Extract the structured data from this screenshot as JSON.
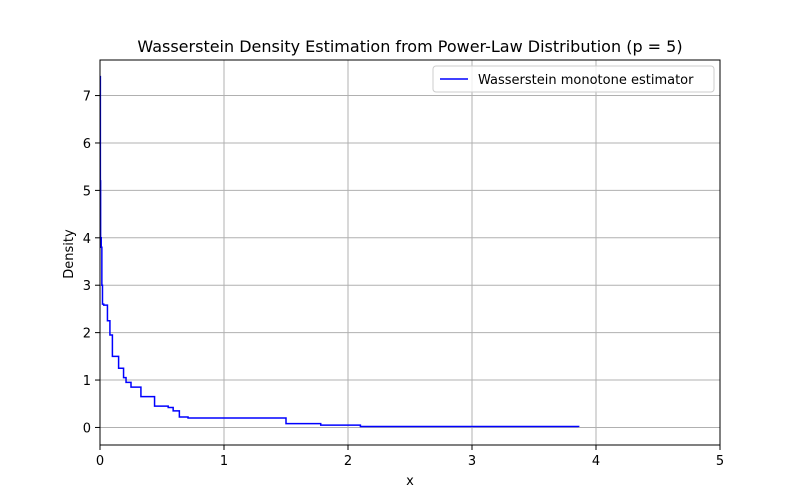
{
  "chart_data": {
    "type": "line",
    "title": "Wasserstein Density Estimation from Power-Law Distribution (p = 5)",
    "xlabel": "x",
    "ylabel": "Density",
    "xlim": [
      0,
      5
    ],
    "ylim": [
      -0.37,
      7.75
    ],
    "xticks": [
      0,
      1,
      2,
      3,
      4,
      5
    ],
    "yticks": [
      0,
      1,
      2,
      3,
      4,
      5,
      6,
      7
    ],
    "grid": true,
    "legend_position": "top-right",
    "series": [
      {
        "name": "Wasserstein monotone estimator",
        "color": "#0000ff",
        "step": "post",
        "x": [
          0.0,
          0.003,
          0.005,
          0.01,
          0.015,
          0.02,
          0.03,
          0.06,
          0.08,
          0.1,
          0.15,
          0.19,
          0.21,
          0.23,
          0.25,
          0.33,
          0.44,
          0.55,
          0.59,
          0.64,
          0.71,
          0.93,
          1.5,
          1.78,
          2.1,
          3.86
        ],
        "y": [
          7.4,
          5.2,
          4.0,
          3.8,
          3.0,
          2.6,
          2.58,
          2.25,
          1.95,
          1.5,
          1.25,
          1.05,
          0.95,
          0.95,
          0.85,
          0.65,
          0.45,
          0.42,
          0.35,
          0.22,
          0.2,
          0.2,
          0.08,
          0.05,
          0.02,
          0.01
        ]
      }
    ]
  }
}
